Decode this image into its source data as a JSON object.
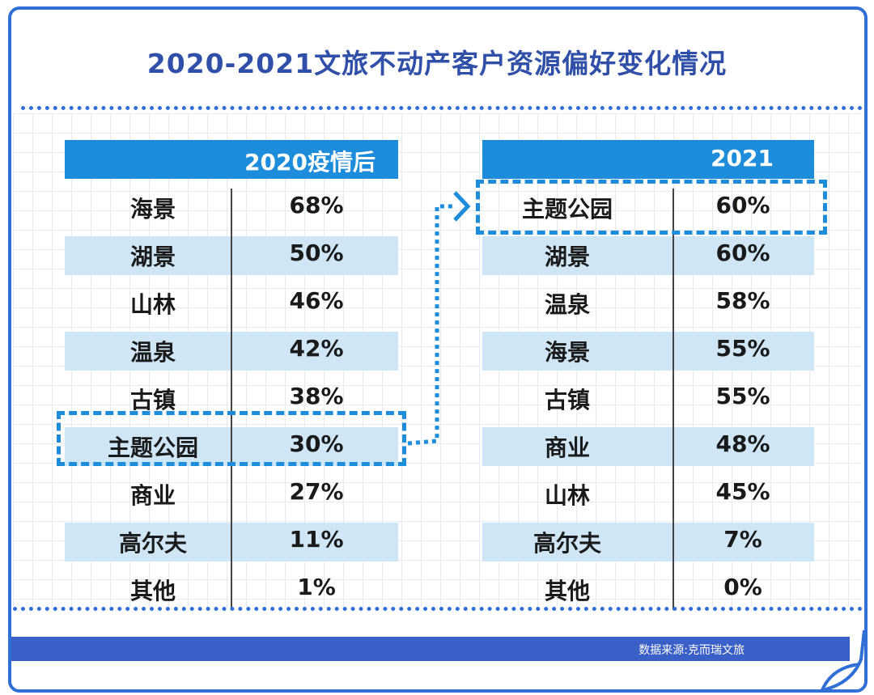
{
  "title": "2020-2021文旅不动产客户资源偏好变化情况",
  "left_table": {
    "header": "2020疫情后",
    "rows": [
      {
        "name": "海景",
        "value": "68%"
      },
      {
        "name": "湖景",
        "value": "50%"
      },
      {
        "name": "山林",
        "value": "46%"
      },
      {
        "name": "温泉",
        "value": "42%"
      },
      {
        "name": "古镇",
        "value": "38%"
      },
      {
        "name": "主题公园",
        "value": "30%"
      },
      {
        "name": "商业",
        "value": "27%"
      },
      {
        "name": "高尔夫",
        "value": "11%"
      },
      {
        "name": "其他",
        "value": "1%"
      }
    ]
  },
  "right_table": {
    "header": "2021",
    "rows": [
      {
        "name": "主题公园",
        "value": "60%"
      },
      {
        "name": "湖景",
        "value": "60%"
      },
      {
        "name": "温泉",
        "value": "58%"
      },
      {
        "name": "海景",
        "value": "55%"
      },
      {
        "name": "古镇",
        "value": "55%"
      },
      {
        "name": "商业",
        "value": "48%"
      },
      {
        "name": "山林",
        "value": "45%"
      },
      {
        "name": "高尔夫",
        "value": "7%"
      },
      {
        "name": "其他",
        "value": "0%"
      }
    ]
  },
  "source": "数据来源:克而瑞文旅",
  "colors": {
    "header": "#1d8ddb",
    "shade": "#cfe6f6",
    "frame": "#2f6fd6",
    "title": "#2f4fa8"
  }
}
